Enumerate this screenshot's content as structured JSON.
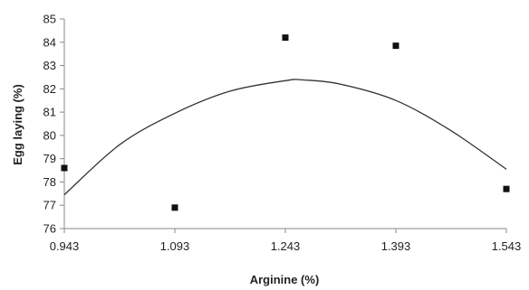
{
  "chart_data": {
    "type": "scatter",
    "title": "",
    "xlabel": "Arginine (%)",
    "ylabel": "Egg laying (%)",
    "xlim": [
      0.943,
      1.543
    ],
    "ylim": [
      76,
      85
    ],
    "x_ticks": [
      "0.943",
      "1.093",
      "1.243",
      "1.393",
      "1.543"
    ],
    "y_ticks": [
      "76",
      "77",
      "78",
      "79",
      "80",
      "81",
      "82",
      "83",
      "84",
      "85"
    ],
    "grid": false,
    "legend": "none",
    "series": [
      {
        "kind": "points",
        "marker": "square",
        "color": "#111111",
        "x": [
          0.943,
          1.093,
          1.243,
          1.393,
          1.543
        ],
        "y": [
          78.6,
          76.9,
          84.2,
          83.85,
          77.7
        ]
      },
      {
        "kind": "fitted-curve",
        "color": "#333333",
        "x": [
          0.943,
          1.018,
          1.093,
          1.168,
          1.243,
          1.268,
          1.318,
          1.393,
          1.468,
          1.543
        ],
        "y": [
          77.45,
          79.6,
          80.95,
          81.9,
          82.35,
          82.38,
          82.2,
          81.5,
          80.2,
          78.55
        ]
      }
    ]
  }
}
